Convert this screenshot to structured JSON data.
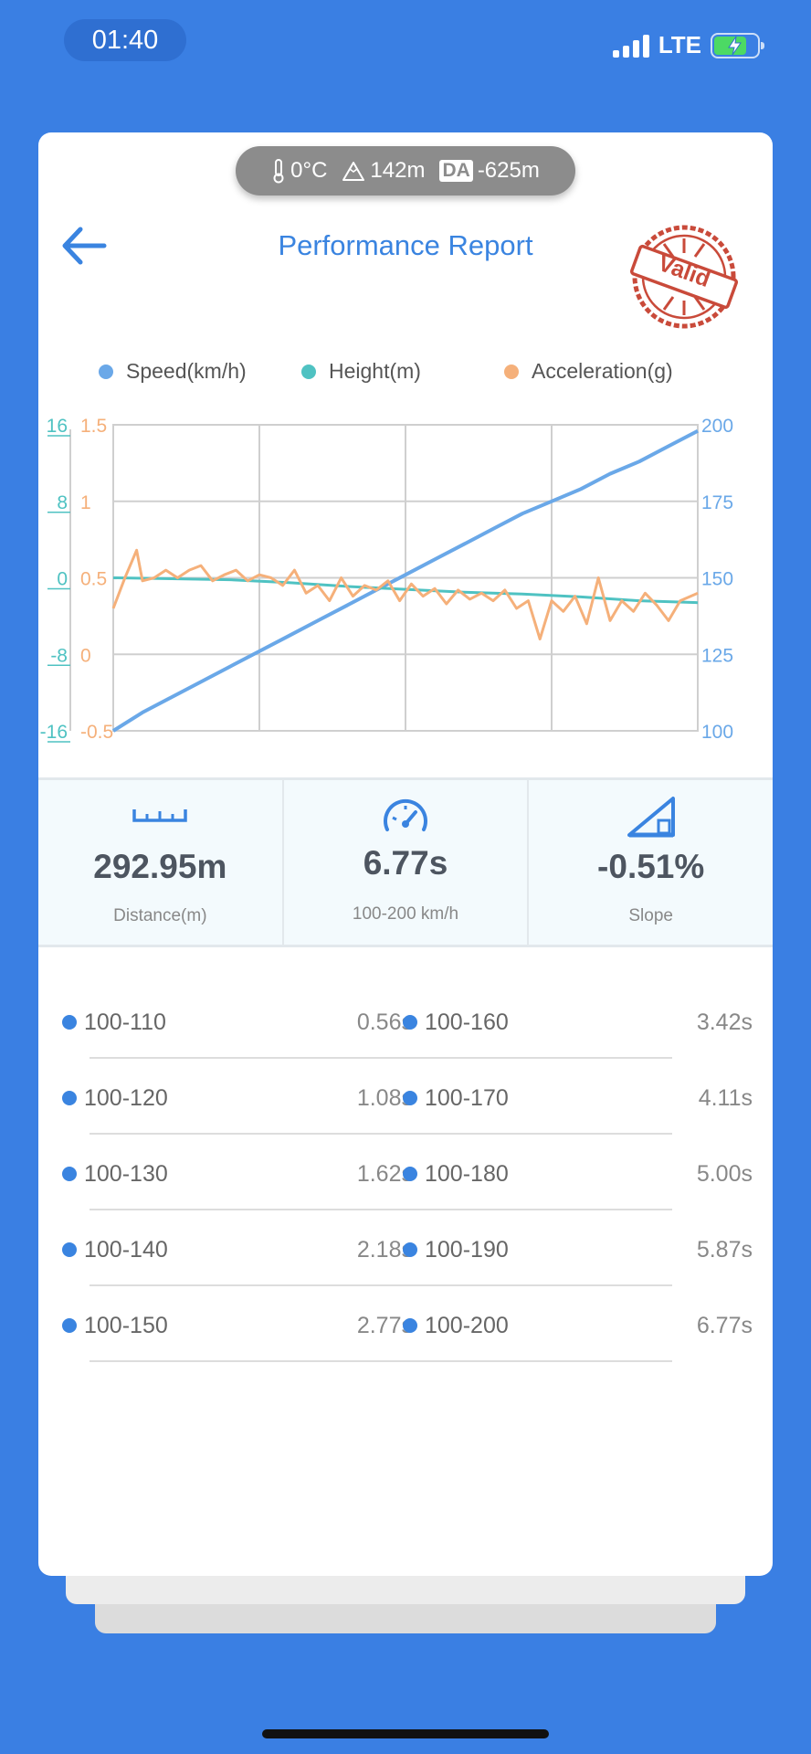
{
  "status_bar": {
    "time": "01:40",
    "network": "LTE",
    "battery_percent": 75,
    "battery_color": "#4cd964"
  },
  "env": {
    "temperature": "0°C",
    "altitude": "142m",
    "da_badge": "DA",
    "density_altitude": "-625m"
  },
  "header": {
    "title": "Performance Report",
    "stamp_text": "Valid",
    "back_icon": "back-arrow-icon"
  },
  "legend": [
    {
      "name": "Speed(km/h)",
      "color": "#6aa8e8"
    },
    {
      "name": "Height(m)",
      "color": "#4fc2c2"
    },
    {
      "name": "Acceleration(g)",
      "color": "#f5b07a"
    }
  ],
  "chart_data": {
    "type": "line",
    "x_range": [
      0,
      1
    ],
    "axes": {
      "height_ticks": [
        "16",
        "8",
        "0",
        "-8",
        "-16"
      ],
      "acceleration_ticks": [
        "1.5",
        "1",
        "0.5",
        "0",
        "-0.5"
      ],
      "speed_ticks": [
        "200",
        "175",
        "150",
        "125",
        "100"
      ],
      "height_range": [
        -16,
        16
      ],
      "acceleration_range": [
        -0.5,
        1.5
      ],
      "speed_range": [
        100,
        200
      ]
    },
    "grid": true,
    "series": [
      {
        "name": "Speed(km/h)",
        "axis": "speed",
        "color": "#6aa8e8",
        "x": [
          0,
          0.05,
          0.1,
          0.15,
          0.2,
          0.25,
          0.3,
          0.35,
          0.4,
          0.45,
          0.5,
          0.55,
          0.6,
          0.65,
          0.7,
          0.75,
          0.8,
          0.85,
          0.9,
          0.95,
          1
        ],
        "y": [
          100,
          106,
          111,
          116,
          121,
          126,
          131,
          136,
          141,
          146,
          151,
          156,
          161,
          166,
          171,
          175,
          179,
          184,
          188,
          193,
          198
        ]
      },
      {
        "name": "Height(m)",
        "axis": "height",
        "color": "#4fc2c2",
        "x": [
          0,
          0.1,
          0.2,
          0.3,
          0.4,
          0.5,
          0.6,
          0.7,
          0.8,
          0.9,
          1
        ],
        "y": [
          0,
          -0.1,
          -0.2,
          -0.5,
          -0.9,
          -1.2,
          -1.5,
          -1.7,
          -2.0,
          -2.4,
          -2.6
        ]
      },
      {
        "name": "Acceleration(g)",
        "axis": "acceleration",
        "color": "#f5b07a",
        "x": [
          0,
          0.02,
          0.04,
          0.05,
          0.07,
          0.09,
          0.11,
          0.13,
          0.15,
          0.17,
          0.19,
          0.21,
          0.23,
          0.25,
          0.27,
          0.29,
          0.31,
          0.33,
          0.35,
          0.37,
          0.39,
          0.41,
          0.43,
          0.45,
          0.47,
          0.49,
          0.51,
          0.53,
          0.55,
          0.57,
          0.59,
          0.61,
          0.63,
          0.65,
          0.67,
          0.69,
          0.71,
          0.73,
          0.75,
          0.77,
          0.79,
          0.81,
          0.83,
          0.85,
          0.87,
          0.89,
          0.91,
          0.93,
          0.95,
          0.97,
          1
        ],
        "y": [
          0.3,
          0.5,
          0.68,
          0.48,
          0.5,
          0.55,
          0.5,
          0.55,
          0.58,
          0.48,
          0.52,
          0.55,
          0.48,
          0.52,
          0.5,
          0.45,
          0.55,
          0.4,
          0.45,
          0.35,
          0.5,
          0.38,
          0.45,
          0.42,
          0.48,
          0.35,
          0.46,
          0.38,
          0.43,
          0.33,
          0.42,
          0.36,
          0.4,
          0.35,
          0.42,
          0.3,
          0.35,
          0.1,
          0.35,
          0.28,
          0.38,
          0.2,
          0.5,
          0.22,
          0.35,
          0.28,
          0.4,
          0.32,
          0.22,
          0.35,
          0.4
        ]
      }
    ]
  },
  "stats": [
    {
      "icon": "ruler-icon",
      "value": "292.95m",
      "label": "Distance(m)"
    },
    {
      "icon": "speedometer-icon",
      "value": "6.77s",
      "label": "100-200 km/h"
    },
    {
      "icon": "slope-icon",
      "value": "-0.51%",
      "label": "Slope"
    }
  ],
  "splits": [
    {
      "left_range": "100-110",
      "left_time": "0.56s",
      "right_range": "100-160",
      "right_time": "3.42s"
    },
    {
      "left_range": "100-120",
      "left_time": "1.08s",
      "right_range": "100-170",
      "right_time": "4.11s"
    },
    {
      "left_range": "100-130",
      "left_time": "1.62s",
      "right_range": "100-180",
      "right_time": "5.00s"
    },
    {
      "left_range": "100-140",
      "left_time": "2.18s",
      "right_range": "100-190",
      "right_time": "5.87s"
    },
    {
      "left_range": "100-150",
      "left_time": "2.77s",
      "right_range": "100-200",
      "right_time": "6.77s"
    }
  ]
}
